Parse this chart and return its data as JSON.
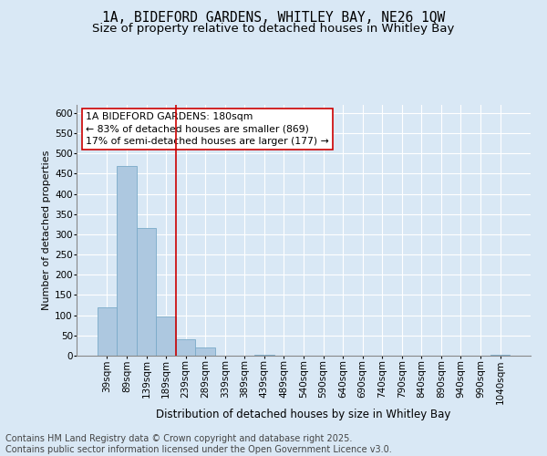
{
  "title_line1": "1A, BIDEFORD GARDENS, WHITLEY BAY, NE26 1QW",
  "title_line2": "Size of property relative to detached houses in Whitley Bay",
  "xlabel": "Distribution of detached houses by size in Whitley Bay",
  "ylabel": "Number of detached properties",
  "categories": [
    "39sqm",
    "89sqm",
    "139sqm",
    "189sqm",
    "239sqm",
    "289sqm",
    "339sqm",
    "389sqm",
    "439sqm",
    "489sqm",
    "540sqm",
    "590sqm",
    "640sqm",
    "690sqm",
    "740sqm",
    "790sqm",
    "840sqm",
    "890sqm",
    "940sqm",
    "990sqm",
    "1040sqm"
  ],
  "values": [
    120,
    470,
    315,
    98,
    40,
    20,
    0,
    0,
    2,
    0,
    0,
    0,
    0,
    0,
    0,
    0,
    0,
    0,
    0,
    0,
    2
  ],
  "bar_color": "#adc8e0",
  "bar_edge_color": "#7aaac8",
  "vline_x": 3.5,
  "vline_color": "#cc0000",
  "annotation_box_text": "1A BIDEFORD GARDENS: 180sqm\n← 83% of detached houses are smaller (869)\n17% of semi-detached houses are larger (177) →",
  "ylim": [
    0,
    620
  ],
  "yticks": [
    0,
    50,
    100,
    150,
    200,
    250,
    300,
    350,
    400,
    450,
    500,
    550,
    600
  ],
  "background_color": "#d9e8f5",
  "plot_bg_color": "#d9e8f5",
  "grid_color": "#ffffff",
  "footer_text": "Contains HM Land Registry data © Crown copyright and database right 2025.\nContains public sector information licensed under the Open Government Licence v3.0.",
  "title_fontsize": 10.5,
  "subtitle_fontsize": 9.5,
  "annotation_fontsize": 7.8,
  "footer_fontsize": 7.0,
  "ylabel_fontsize": 8,
  "xlabel_fontsize": 8.5,
  "tick_fontsize": 7.5
}
